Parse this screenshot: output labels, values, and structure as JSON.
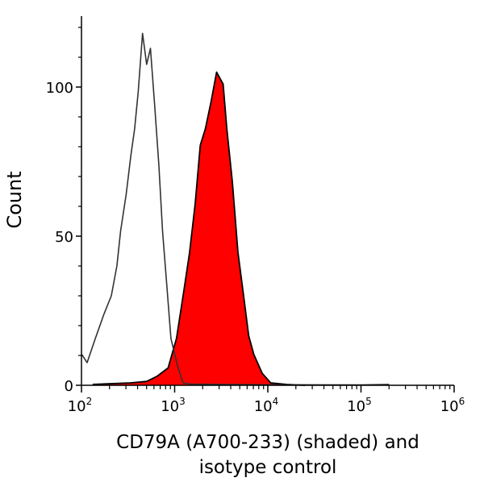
{
  "chart_data": {
    "type": "area",
    "title": "",
    "xlabel_lines": [
      "CD79A (A700-233) (shaded) and",
      "isotype control"
    ],
    "ylabel": "Count",
    "x_scale": "log",
    "xlim": [
      100,
      1000000
    ],
    "ylim": [
      0,
      124
    ],
    "x_ticks": [
      {
        "value": 100,
        "base": "10",
        "exp": "2"
      },
      {
        "value": 1000,
        "base": "10",
        "exp": "3"
      },
      {
        "value": 10000,
        "base": "10",
        "exp": "4"
      },
      {
        "value": 100000,
        "base": "10",
        "exp": "5"
      },
      {
        "value": 1000000,
        "base": "10",
        "exp": "6"
      }
    ],
    "y_ticks": [
      {
        "value": 0,
        "label": "0"
      },
      {
        "value": 50,
        "label": "50"
      },
      {
        "value": 100,
        "label": "100"
      }
    ],
    "grid": false,
    "series": [
      {
        "style": "outline",
        "color": "#333333",
        "x": [
          101,
          115,
          141,
          174,
          209,
          240,
          263,
          302,
          339,
          372,
          407,
          452,
          501,
          550,
          610,
          676,
          741,
          822,
          912,
          1072,
          1230,
          1500,
          3000,
          10000,
          100000,
          200000
        ],
        "y": [
          10.3,
          7.6,
          15.7,
          23.8,
          30,
          40,
          51.7,
          64,
          77,
          86,
          98.6,
          118,
          107.6,
          113,
          94,
          74,
          51.7,
          33.8,
          15.7,
          6.6,
          0.8,
          0.4,
          0.3,
          0.2,
          0.1,
          0.3
        ]
      },
      {
        "style": "filled",
        "color": "#ff0000",
        "x": [
          132,
          339,
          501,
          646,
          851,
          1047,
          1259,
          1445,
          1660,
          1884,
          2138,
          2455,
          2818,
          3311,
          3631,
          4169,
          4786,
          5495,
          6237,
          7079,
          8710,
          10715,
          15849,
          25000
        ],
        "y": [
          0.3,
          0.8,
          1.3,
          3,
          5.8,
          15.7,
          32,
          44.5,
          60.7,
          80.5,
          86,
          95,
          105,
          101,
          86,
          68,
          44.5,
          30,
          16.6,
          10.3,
          4,
          0.8,
          0.3,
          0
        ]
      }
    ]
  }
}
